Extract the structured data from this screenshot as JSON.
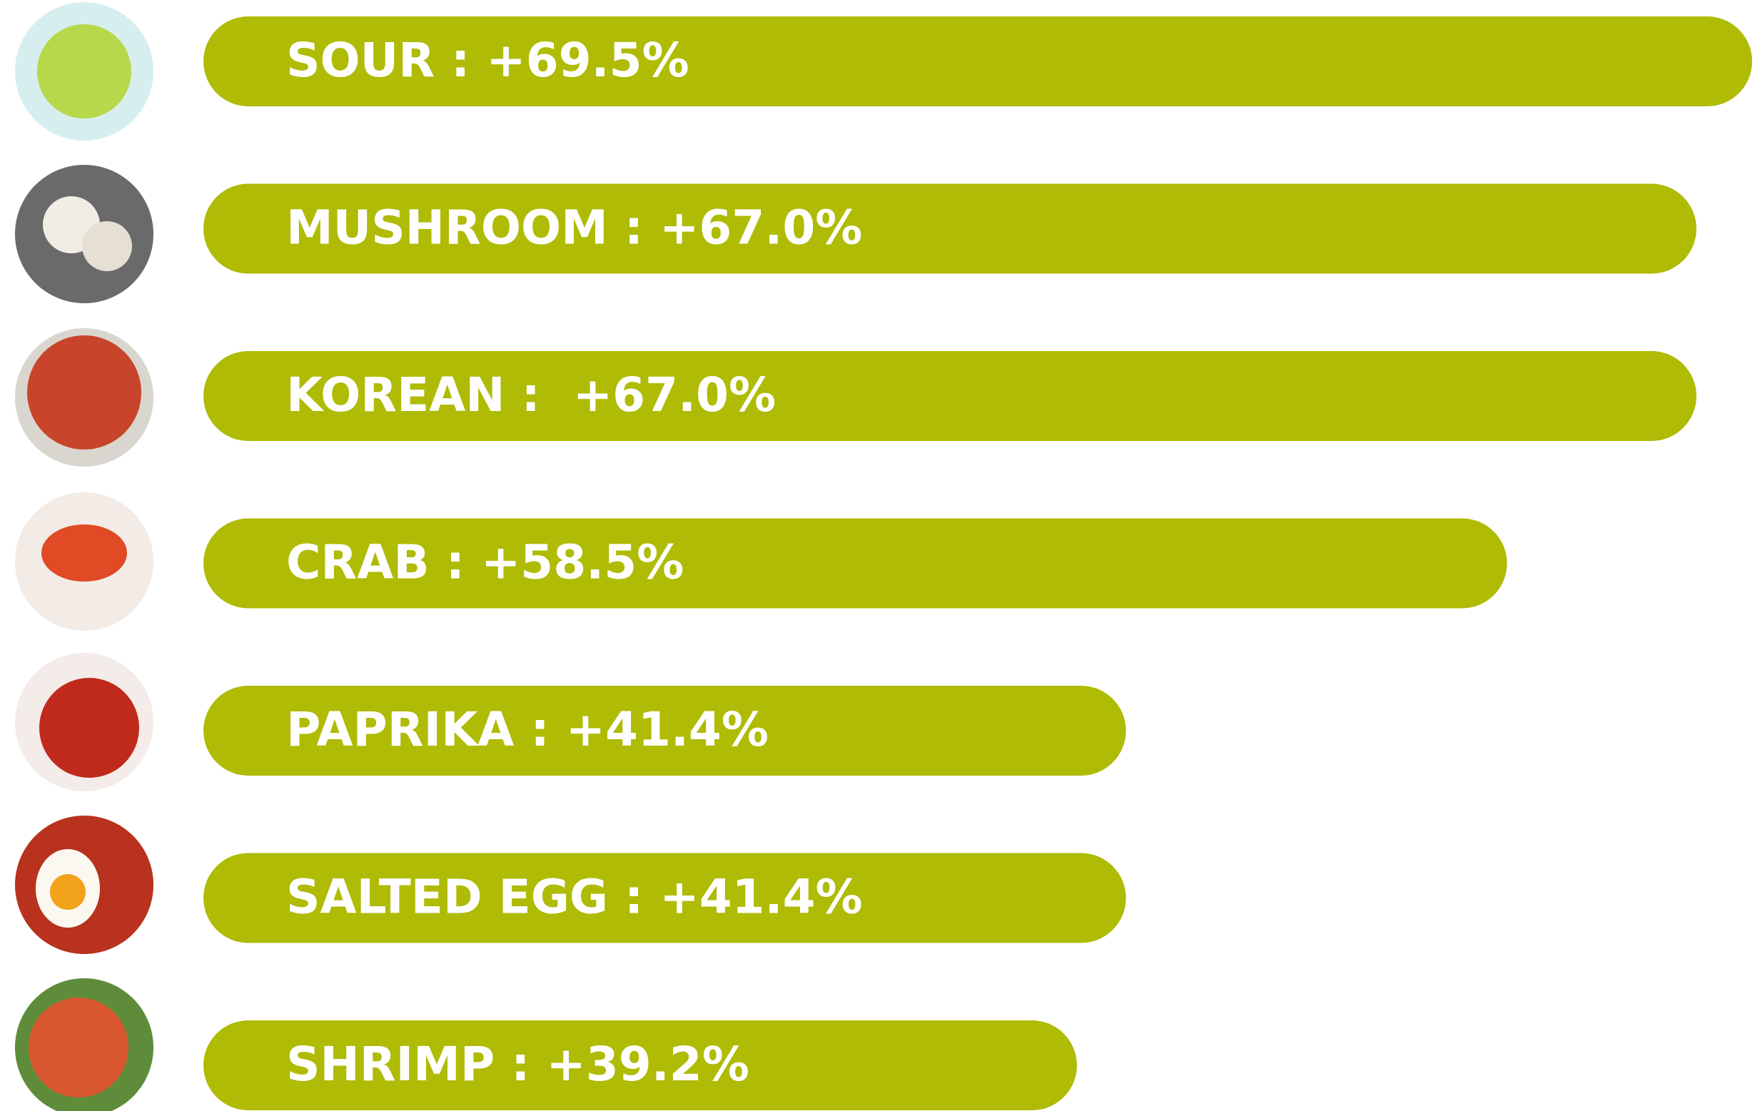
{
  "chart_data": {
    "type": "bar",
    "orientation": "horizontal",
    "color": "#afbb05",
    "values": [
      69.5,
      67.0,
      67.0,
      58.5,
      41.4,
      41.4,
      39.2
    ],
    "value_labels": [
      "SOUR : +69.5%",
      "MUSHROOM : +67.0%",
      "KOREAN :  +67.0%",
      "CRAB : +58.5%",
      "PAPRIKA : +41.4%",
      "SALTED EGG : +41.4%",
      "SHRIMP : +39.2%"
    ]
  }
}
